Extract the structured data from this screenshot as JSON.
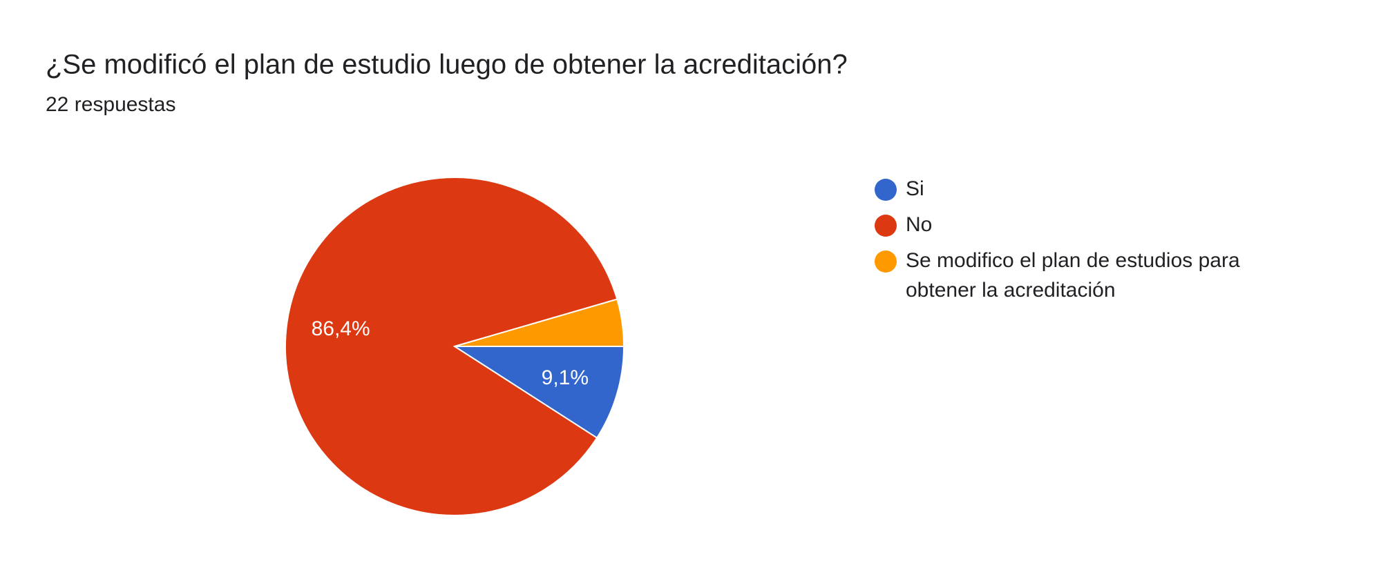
{
  "chart_data": {
    "type": "pie",
    "title": "¿Se modificó el plan de estudio luego de obtener la acreditación?",
    "subtitle": "22 respuestas",
    "categories": [
      "Si",
      "No",
      "Se modifico el plan de estudios para obtener la acreditación"
    ],
    "values": [
      9.1,
      86.4,
      4.5
    ],
    "value_labels": [
      "9,1%",
      "86,4%",
      null
    ],
    "colors": [
      "#3366cc",
      "#dc3912",
      "#ff9900"
    ],
    "legend": "right"
  }
}
